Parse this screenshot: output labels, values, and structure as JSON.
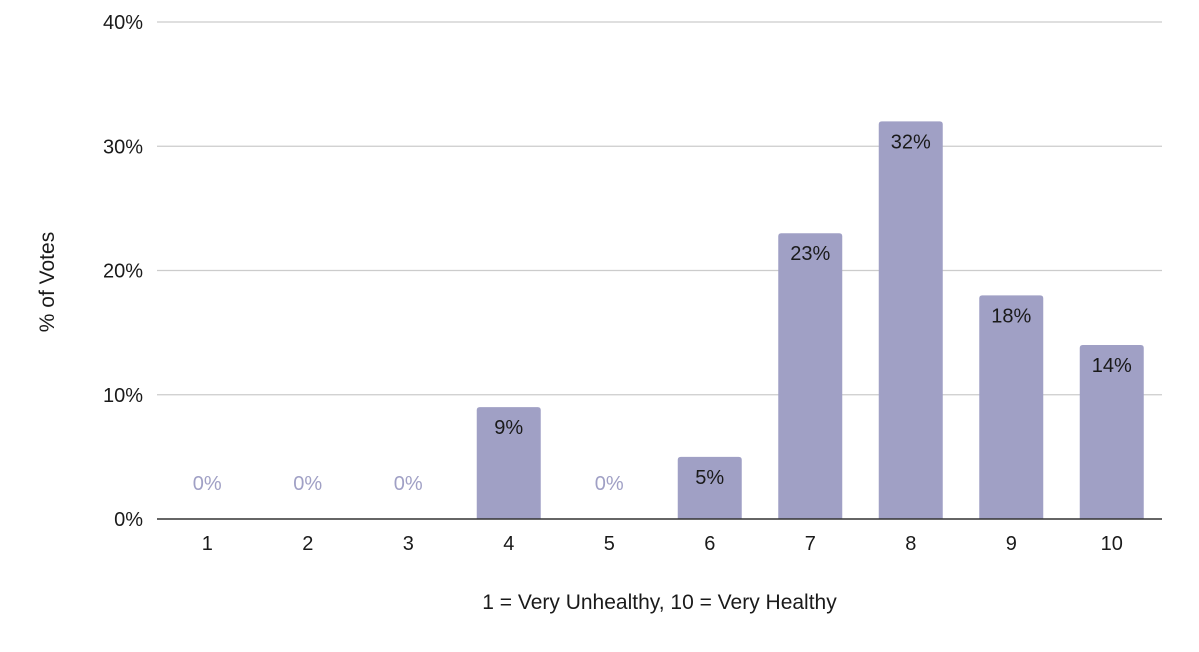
{
  "chart_data": {
    "type": "bar",
    "title": "",
    "xlabel": "1 = Very Unhealthy, 10 = Very Healthy",
    "ylabel": "% of Votes",
    "categories": [
      "1",
      "2",
      "3",
      "4",
      "5",
      "6",
      "7",
      "8",
      "9",
      "10"
    ],
    "values": [
      0,
      0,
      0,
      9,
      0,
      5,
      23,
      32,
      18,
      14
    ],
    "data_labels": [
      "0%",
      "0%",
      "0%",
      "9%",
      "0%",
      "5%",
      "23%",
      "32%",
      "18%",
      "14%"
    ],
    "ylim": [
      0,
      40
    ],
    "yticks": [
      0,
      10,
      20,
      30,
      40
    ],
    "ytick_labels": [
      "0%",
      "10%",
      "20%",
      "30%",
      "40%"
    ],
    "grid": true,
    "legend": "none",
    "colors": {
      "bar": "#a0a0c5",
      "zero_label": "#a0a0c5",
      "label": "#1a1a1a",
      "grid": "#cccccc",
      "axis": "#333333"
    }
  }
}
